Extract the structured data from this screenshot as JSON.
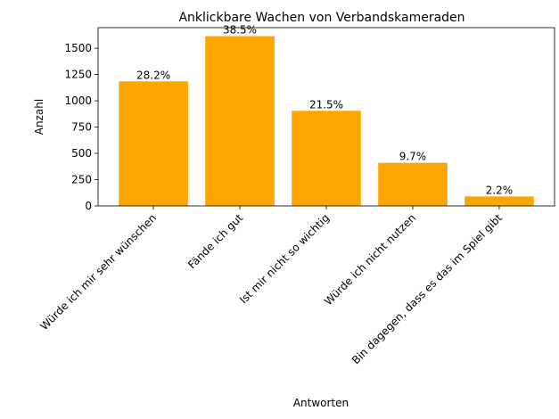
{
  "chart_data": {
    "type": "bar",
    "title": "Anklickbare Wachen von Verbandskameraden",
    "x_label": "Antworten",
    "y_label": "Anzahl",
    "categories": [
      "Würde ich mir sehr wünschen",
      "Fände ich gut",
      "Ist mir nicht so wichtig",
      "Würde ich nicht nutzen",
      "Bin dagegen, dass es das im Spiel gibt"
    ],
    "values": [
      1185,
      1615,
      905,
      410,
      90
    ],
    "annotations": [
      "28.2%",
      "38.5%",
      "21.5%",
      "9.7%",
      "2.2%"
    ],
    "color": "#ffa500",
    "ylim": [
      0,
      1696
    ],
    "yticks": [
      0,
      250,
      500,
      750,
      1000,
      1250,
      1500
    ],
    "grid": false
  }
}
